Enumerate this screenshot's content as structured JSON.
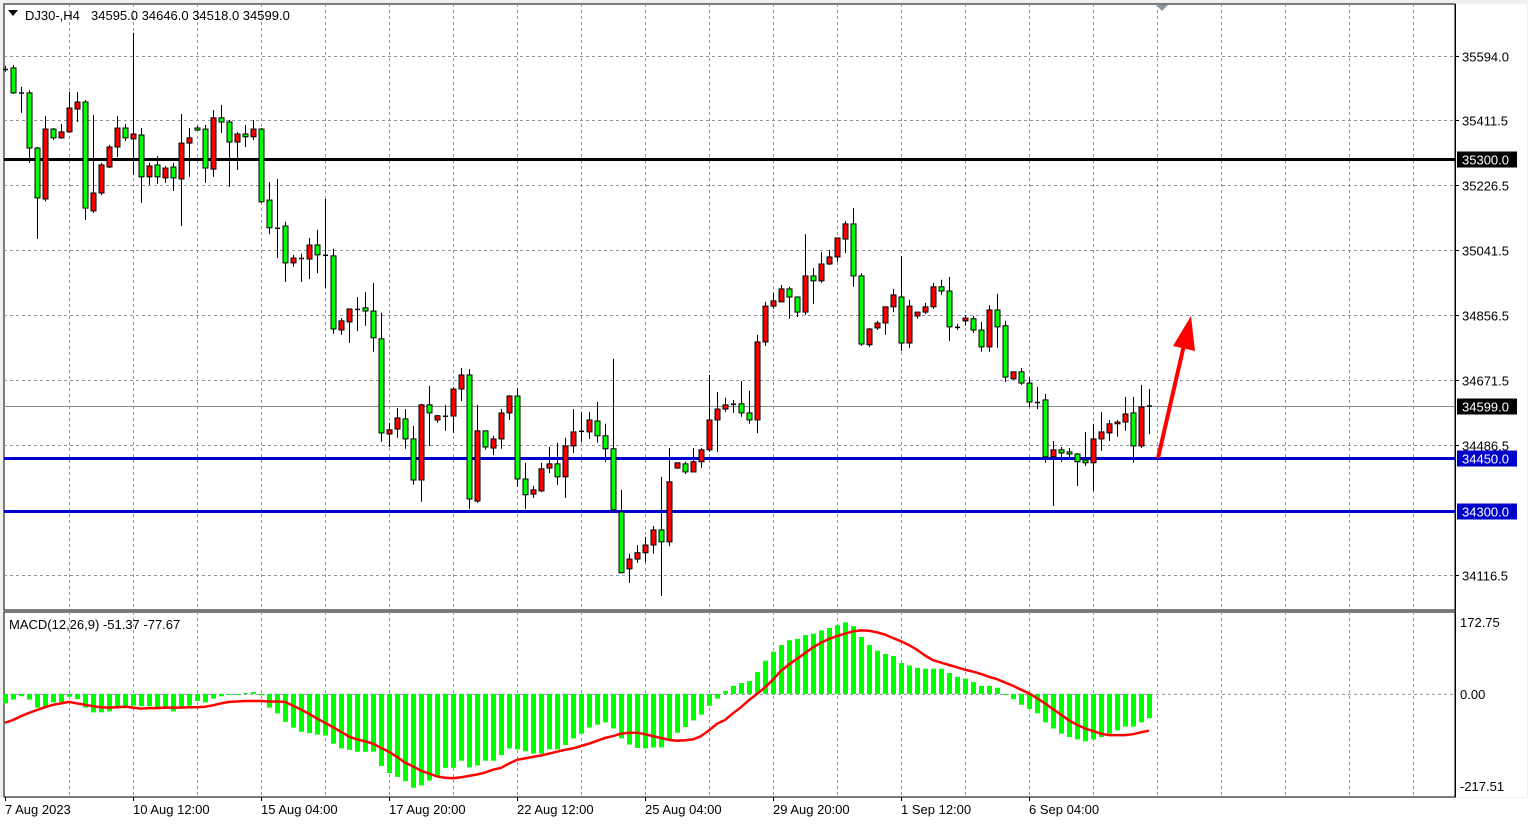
{
  "header": {
    "menu_icon": "triangle-down-icon",
    "symbol": "DJ30-,H4",
    "ohlc": "34595.0 34646.0 34518.0 34599.0"
  },
  "macd_header": {
    "label": "MACD(12,26,9) -51.37 -77.67"
  },
  "colors": {
    "up_candle": "#ff0000",
    "down_candle": "#00ff00",
    "candle_outline": "#000000",
    "resistance_line": "#000000",
    "support_line": "#0000cc",
    "histogram": "#00ff00",
    "signal_line": "#ff0000",
    "arrow": "#ff0000",
    "grid": "#8a96a3",
    "current_price_line": "#8a8a8a"
  },
  "chart_data": [
    {
      "type": "candlestick",
      "symbol": "DJ30-",
      "timeframe": "H4",
      "grid": true,
      "price_axis_range": [
        34017,
        35742
      ],
      "price_ticks": [
        "35594.0",
        "35411.5",
        "35226.5",
        "35041.5",
        "34856.5",
        "34671.5",
        "34486.5",
        "34116.5"
      ],
      "time_labels": [
        {
          "bar": 0,
          "label": "7 Aug 2023"
        },
        {
          "bar": 16,
          "label": "10 Aug 12:00"
        },
        {
          "bar": 32,
          "label": "15 Aug 04:00"
        },
        {
          "bar": 48,
          "label": "17 Aug 20:00"
        },
        {
          "bar": 64,
          "label": "22 Aug 12:00"
        },
        {
          "bar": 80,
          "label": "25 Aug 04:00"
        },
        {
          "bar": 96,
          "label": "29 Aug 20:00"
        },
        {
          "bar": 112,
          "label": "1 Sep 12:00"
        },
        {
          "bar": 128,
          "label": "6 Sep 04:00"
        }
      ],
      "horizontal_lines": [
        {
          "price": 35300.0,
          "label": "35300.0",
          "color": "#000000"
        },
        {
          "price": 34450.0,
          "label": "34450.0",
          "color": "#0000cc"
        },
        {
          "price": 34300.0,
          "label": "34300.0",
          "color": "#0000cc"
        }
      ],
      "current_price": {
        "price": 34599.0,
        "label": "34599.0"
      },
      "annotation": {
        "type": "arrow",
        "direction": "up",
        "color": "#ff0000",
        "from_bar": 144,
        "from_price": 34450,
        "to_bar": 148,
        "to_price": 34856
      },
      "candles_format": [
        "open",
        "high",
        "low",
        "close"
      ],
      "candles": [
        [
          35557,
          35566,
          35549,
          35557
        ],
        [
          35560,
          35568,
          35486,
          35489
        ],
        [
          35489,
          35506,
          35432,
          35490
        ],
        [
          35489,
          35497,
          35290,
          35332
        ],
        [
          35332,
          35335,
          35073,
          35190
        ],
        [
          35187,
          35423,
          35180,
          35386
        ],
        [
          35386,
          35389,
          35355,
          35361
        ],
        [
          35361,
          35400,
          35358,
          35378
        ],
        [
          35378,
          35492,
          35375,
          35446
        ],
        [
          35443,
          35492,
          35406,
          35463
        ],
        [
          35463,
          35469,
          35127,
          35161
        ],
        [
          35153,
          35426,
          35147,
          35204
        ],
        [
          35204,
          35290,
          35198,
          35284
        ],
        [
          35278,
          35341,
          35275,
          35335
        ],
        [
          35335,
          35423,
          35307,
          35389
        ],
        [
          35389,
          35400,
          35352,
          35361
        ],
        [
          35358,
          35660,
          35255,
          35372
        ],
        [
          35369,
          35389,
          35176,
          35250
        ],
        [
          35250,
          35290,
          35227,
          35281
        ],
        [
          35284,
          35309,
          35230,
          35250
        ],
        [
          35247,
          35281,
          35233,
          35275
        ],
        [
          35278,
          35290,
          35210,
          35247
        ],
        [
          35244,
          35429,
          35110,
          35346
        ],
        [
          35346,
          35389,
          35250,
          35361
        ],
        [
          35389,
          35395,
          35381,
          35383
        ],
        [
          35386,
          35398,
          35233,
          35275
        ],
        [
          35272,
          35440,
          35250,
          35418
        ],
        [
          35418,
          35455,
          35375,
          35406
        ],
        [
          35406,
          35412,
          35221,
          35349
        ],
        [
          35349,
          35378,
          35270,
          35372
        ],
        [
          35372,
          35398,
          35335,
          35364
        ],
        [
          35364,
          35412,
          35355,
          35386
        ],
        [
          35386,
          35389,
          35176,
          35179
        ],
        [
          35184,
          35235,
          35087,
          35105
        ],
        [
          35105,
          35244,
          35019,
          35104
        ],
        [
          35110,
          35122,
          34951,
          35005
        ],
        [
          35005,
          35028,
          34994,
          35019
        ],
        [
          35019,
          35031,
          34951,
          35016
        ],
        [
          35016,
          35076,
          34959,
          35056
        ],
        [
          35056,
          35099,
          34976,
          35028
        ],
        [
          35028,
          35187,
          34934,
          35025
        ],
        [
          35025,
          35045,
          34803,
          34817
        ],
        [
          34814,
          34848,
          34800,
          34840
        ],
        [
          34837,
          34874,
          34777,
          34874
        ],
        [
          34874,
          34908,
          34811,
          34872
        ],
        [
          34877,
          34922,
          34826,
          34868
        ],
        [
          34868,
          34948,
          34752,
          34792
        ],
        [
          34789,
          34863,
          34496,
          34521
        ],
        [
          34518,
          34550,
          34481,
          34530
        ],
        [
          34532,
          34592,
          34507,
          34564
        ],
        [
          34561,
          34589,
          34476,
          34504
        ],
        [
          34504,
          34541,
          34373,
          34387
        ],
        [
          34387,
          34604,
          34325,
          34601
        ],
        [
          34601,
          34655,
          34484,
          34578
        ],
        [
          34558,
          34572,
          34550,
          34570
        ],
        [
          34570,
          34601,
          34527,
          34569
        ],
        [
          34569,
          34652,
          34521,
          34646
        ],
        [
          34646,
          34706,
          34612,
          34686
        ],
        [
          34686,
          34703,
          34305,
          34333
        ],
        [
          34327,
          34601,
          34322,
          34527
        ],
        [
          34527,
          34527,
          34473,
          34481
        ],
        [
          34478,
          34513,
          34458,
          34504
        ],
        [
          34504,
          34589,
          34476,
          34578
        ],
        [
          34578,
          34629,
          34558,
          34626
        ],
        [
          34626,
          34649,
          34367,
          34390
        ],
        [
          34390,
          34436,
          34305,
          34345
        ],
        [
          34347,
          34370,
          34336,
          34359
        ],
        [
          34356,
          34436,
          34353,
          34419
        ],
        [
          34421,
          34481,
          34407,
          34433
        ],
        [
          34433,
          34493,
          34373,
          34396
        ],
        [
          34396,
          34507,
          34336,
          34484
        ],
        [
          34484,
          34589,
          34464,
          34524
        ],
        [
          34524,
          34581,
          34496,
          34527
        ],
        [
          34524,
          34581,
          34504,
          34558
        ],
        [
          34555,
          34609,
          34493,
          34513
        ],
        [
          34513,
          34547,
          34439,
          34476
        ],
        [
          34476,
          34732,
          34302,
          34302
        ],
        [
          34296,
          34359,
          34123,
          34123
        ],
        [
          34134,
          34177,
          34094,
          34162
        ],
        [
          34162,
          34202,
          34151,
          34180
        ],
        [
          34180,
          34225,
          34154,
          34202
        ],
        [
          34202,
          34256,
          34177,
          34245
        ],
        [
          34245,
          34396,
          34057,
          34211
        ],
        [
          34211,
          34478,
          34199,
          34382
        ],
        [
          34421,
          34436,
          34419,
          34436
        ],
        [
          34433,
          34439,
          34404,
          34410
        ],
        [
          34410,
          34478,
          34410,
          34439
        ],
        [
          34439,
          34478,
          34421,
          34473
        ],
        [
          34473,
          34686,
          34467,
          34558
        ],
        [
          34558,
          34638,
          34467,
          34589
        ],
        [
          34589,
          34621,
          34581,
          34601
        ],
        [
          34601,
          34615,
          34578,
          34604
        ],
        [
          34604,
          34669,
          34567,
          34578
        ],
        [
          34578,
          34641,
          34547,
          34558
        ],
        [
          34558,
          34800,
          34521,
          34780
        ],
        [
          34780,
          34894,
          34769,
          34882
        ],
        [
          34882,
          34920,
          34874,
          34897
        ],
        [
          34894,
          34942,
          34894,
          34931
        ],
        [
          34931,
          34937,
          34846,
          34908
        ],
        [
          34908,
          34908,
          34851,
          34865
        ],
        [
          34865,
          35087,
          34857,
          34968
        ],
        [
          34968,
          34991,
          34888,
          34954
        ],
        [
          34954,
          35036,
          34948,
          35002
        ],
        [
          35002,
          35042,
          34999,
          35022
        ],
        [
          35022,
          35076,
          35008,
          35076
        ],
        [
          35073,
          35124,
          35033,
          35116
        ],
        [
          35116,
          35161,
          34937,
          34968
        ],
        [
          34968,
          34976,
          34769,
          34774
        ],
        [
          34772,
          34820,
          34766,
          34817
        ],
        [
          34820,
          34840,
          34814,
          34834
        ],
        [
          34834,
          34880,
          34800,
          34880
        ],
        [
          34880,
          34931,
          34865,
          34914
        ],
        [
          34908,
          35025,
          34754,
          34777
        ],
        [
          34777,
          34900,
          34763,
          34882
        ],
        [
          34854,
          34865,
          34846,
          34865
        ],
        [
          34865,
          34891,
          34860,
          34880
        ],
        [
          34880,
          34948,
          34874,
          34937
        ],
        [
          34937,
          34957,
          34914,
          34925
        ],
        [
          34925,
          34965,
          34783,
          34823
        ],
        [
          34823,
          34831,
          34814,
          34822
        ],
        [
          34840,
          34857,
          34826,
          34848
        ],
        [
          34846,
          34854,
          34806,
          34814
        ],
        [
          34814,
          34837,
          34752,
          34766
        ],
        [
          34766,
          34885,
          34752,
          34871
        ],
        [
          34871,
          34917,
          34763,
          34823
        ],
        [
          34826,
          34840,
          34666,
          34680
        ],
        [
          34675,
          34695,
          34672,
          34695
        ],
        [
          34695,
          34706,
          34658,
          34663
        ],
        [
          34663,
          34680,
          34595,
          34609
        ],
        [
          34609,
          34652,
          34589,
          34607
        ],
        [
          34615,
          34632,
          34436,
          34453
        ],
        [
          34453,
          34498,
          34313,
          34473
        ],
        [
          34473,
          34481,
          34439,
          34464
        ],
        [
          34467,
          34478,
          34450,
          34461
        ],
        [
          34461,
          34464,
          34370,
          34439
        ],
        [
          34444,
          34524,
          34427,
          34436
        ],
        [
          34436,
          34547,
          34356,
          34504
        ],
        [
          34504,
          34581,
          34470,
          34524
        ],
        [
          34521,
          34558,
          34498,
          34547
        ],
        [
          34547,
          34558,
          34510,
          34552
        ],
        [
          34552,
          34624,
          34527,
          34575
        ],
        [
          34578,
          34624,
          34436,
          34484
        ],
        [
          34484,
          34658,
          34478,
          34595
        ],
        [
          34595,
          34646,
          34518,
          34599
        ]
      ]
    },
    {
      "type": "bar+line",
      "indicator": "MACD(12,26,9)",
      "ylim": [
        -217.51,
        172.75
      ],
      "y_ticks": [
        "172.75",
        "0.00",
        "-217.51"
      ],
      "histogram": [
        -20,
        -12,
        -5,
        -12,
        -29,
        -27,
        -18,
        -17,
        -6,
        -11,
        -29,
        -39,
        -39,
        -37,
        -26,
        -26,
        -25,
        -26,
        -26,
        -31,
        -31,
        -37,
        -27,
        -25,
        -15,
        -18,
        -10,
        -5,
        -1,
        -1,
        2,
        4,
        -3,
        -29,
        -41,
        -59,
        -71,
        -80,
        -83,
        -86,
        -88,
        -105,
        -115,
        -118,
        -122,
        -122,
        -122,
        -152,
        -167,
        -175,
        -184,
        -198,
        -193,
        -183,
        -172,
        -156,
        -156,
        -141,
        -155,
        -151,
        -141,
        -141,
        -129,
        -115,
        -117,
        -121,
        -126,
        -126,
        -117,
        -117,
        -108,
        -94,
        -84,
        -71,
        -65,
        -60,
        -73,
        -94,
        -107,
        -114,
        -115,
        -113,
        -113,
        -96,
        -82,
        -70,
        -56,
        -44,
        -25,
        -10,
        6,
        17,
        23,
        27,
        46,
        70,
        89,
        103,
        113,
        116,
        124,
        127,
        134,
        139,
        145,
        151,
        143,
        120,
        103,
        91,
        84,
        80,
        65,
        60,
        55,
        53,
        53,
        53,
        44,
        36,
        32,
        25,
        17,
        17,
        13,
        -1,
        -11,
        -23,
        -32,
        -41,
        -60,
        -73,
        -84,
        -91,
        -96,
        -100,
        -96,
        -91,
        -84,
        -77,
        -69,
        -69,
        -60,
        -51.37
      ],
      "signal": [
        -61,
        -55,
        -47,
        -40,
        -34,
        -28,
        -23,
        -20,
        -17,
        -20,
        -23,
        -26,
        -28,
        -29,
        -28,
        -27,
        -29,
        -31,
        -30,
        -30,
        -29,
        -29,
        -29,
        -28,
        -28,
        -27,
        -24,
        -20,
        -17,
        -16,
        -15,
        -15,
        -15,
        -16,
        -16,
        -17,
        -25,
        -33,
        -42,
        -52,
        -61,
        -70,
        -80,
        -90,
        -96,
        -100,
        -105,
        -114,
        -122,
        -133,
        -145,
        -153,
        -162,
        -168,
        -174,
        -177,
        -178,
        -176,
        -173,
        -170,
        -166,
        -160,
        -156,
        -147,
        -139,
        -136,
        -133,
        -130,
        -126,
        -122,
        -118,
        -115,
        -110,
        -105,
        -99,
        -93,
        -89,
        -84,
        -82,
        -82,
        -85,
        -89,
        -93,
        -97,
        -99,
        -98,
        -96,
        -89,
        -77,
        -63,
        -55,
        -41,
        -28,
        -13,
        0,
        14,
        30,
        49,
        62,
        74,
        86,
        98,
        108,
        116,
        122,
        127,
        132,
        134,
        133,
        130,
        125,
        118,
        111,
        103,
        93,
        81,
        71,
        66,
        61,
        56,
        51,
        47,
        42,
        36,
        31,
        24,
        17,
        9,
        1,
        -9,
        -20,
        -32,
        -44,
        -56,
        -65,
        -73,
        -78,
        -84,
        -87,
        -87,
        -87,
        -85,
        -81,
        -77.67
      ]
    }
  ]
}
